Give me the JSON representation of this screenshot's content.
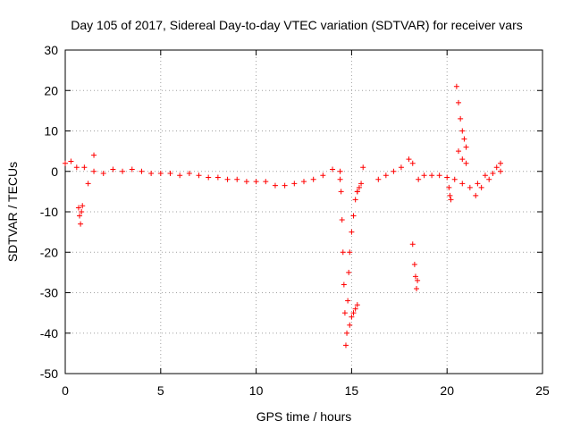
{
  "chart_data": {
    "type": "scatter",
    "title": "Day 105 of 2017, Sidereal Day-to-day VTEC variation (SDTVAR) for receiver vars",
    "xlabel": "GPS time / hours",
    "ylabel": "SDTVAR / TECUs",
    "xlim": [
      0,
      25
    ],
    "ylim": [
      -50,
      30
    ],
    "xticks": [
      0,
      5,
      10,
      15,
      20,
      25
    ],
    "yticks": [
      30,
      20,
      10,
      0,
      -10,
      -20,
      -30,
      -40,
      -50
    ],
    "grid": true,
    "marker": "+",
    "color": "#ff0000",
    "segments": [
      {
        "name": "main-band-a",
        "x": [
          0.0,
          0.3,
          0.6,
          1.0,
          1.5,
          2.0,
          2.5,
          3.0,
          3.5,
          4.0,
          4.5,
          5.0,
          5.5,
          6.0,
          6.5,
          7.0,
          7.5,
          8.0,
          8.5,
          9.0,
          9.5,
          10.0,
          10.5,
          11.0,
          11.5,
          12.0,
          12.5,
          13.0,
          13.5,
          14.0,
          14.4
        ],
        "y": [
          2,
          2.5,
          1,
          1,
          0,
          -0.5,
          0.5,
          0,
          0.5,
          0,
          -0.5,
          -0.5,
          -0.5,
          -1,
          -0.5,
          -1,
          -1.5,
          -1.5,
          -2,
          -2,
          -2.5,
          -2.5,
          -2.5,
          -3.5,
          -3.5,
          -3,
          -2.5,
          -2,
          -1,
          0.5,
          0
        ]
      },
      {
        "name": "early-dip",
        "x": [
          0.7,
          0.75,
          0.8,
          0.85,
          0.9
        ],
        "y": [
          -9,
          -11,
          -13,
          -10,
          -8.5
        ]
      },
      {
        "name": "early-spikes",
        "x": [
          1.2,
          1.5
        ],
        "y": [
          -3,
          4
        ]
      },
      {
        "name": "drop-left",
        "x": [
          14.4,
          14.45,
          14.5,
          14.55,
          14.6,
          14.65,
          14.7,
          14.75,
          14.8,
          14.85
        ],
        "y": [
          -2,
          -5,
          -12,
          -20,
          -28,
          -35,
          -43,
          -40,
          -32,
          -25
        ]
      },
      {
        "name": "recovery-mid",
        "x": [
          14.9,
          15.0,
          15.1,
          15.2,
          15.3
        ],
        "y": [
          -20,
          -15,
          -11,
          -7,
          -5
        ]
      },
      {
        "name": "recovery-low",
        "x": [
          14.9,
          15.0,
          15.1,
          15.2,
          15.3
        ],
        "y": [
          -38,
          -36,
          -35,
          -34,
          -33
        ]
      },
      {
        "name": "recovery-upper",
        "x": [
          15.3,
          15.4,
          15.5,
          15.6
        ],
        "y": [
          -5,
          -4,
          -3,
          1
        ]
      },
      {
        "name": "cluster-16-18",
        "x": [
          16.4,
          16.8,
          17.2,
          17.6,
          18.0,
          18.2,
          18.5
        ],
        "y": [
          -2,
          -1,
          0,
          1,
          3,
          2,
          -2
        ]
      },
      {
        "name": "dip-18",
        "x": [
          18.2,
          18.3,
          18.35,
          18.4,
          18.45
        ],
        "y": [
          -18,
          -23,
          -26,
          -29,
          -27
        ]
      },
      {
        "name": "band-19-23",
        "x": [
          18.8,
          19.2,
          19.6,
          20.0,
          20.4,
          20.8,
          21.2,
          21.6,
          22.0,
          22.4,
          22.8
        ],
        "y": [
          -1,
          -1,
          -1,
          -1.5,
          -2,
          -3,
          -4,
          -3,
          -1,
          -0.5,
          0
        ]
      },
      {
        "name": "spike-20",
        "x": [
          20.1,
          20.15,
          20.2
        ],
        "y": [
          -4,
          -6,
          -7
        ]
      },
      {
        "name": "spike-20_5",
        "x": [
          20.5,
          20.6,
          20.7,
          20.8,
          20.9,
          21.0
        ],
        "y": [
          21,
          17,
          13,
          10,
          8,
          6
        ]
      },
      {
        "name": "band-20_5-21",
        "x": [
          20.6,
          20.8,
          21.0
        ],
        "y": [
          5,
          3,
          2
        ]
      },
      {
        "name": "end-rise",
        "x": [
          21.5,
          21.8,
          22.2,
          22.6,
          22.8
        ],
        "y": [
          -6,
          -4,
          -2,
          1,
          2
        ]
      }
    ]
  }
}
